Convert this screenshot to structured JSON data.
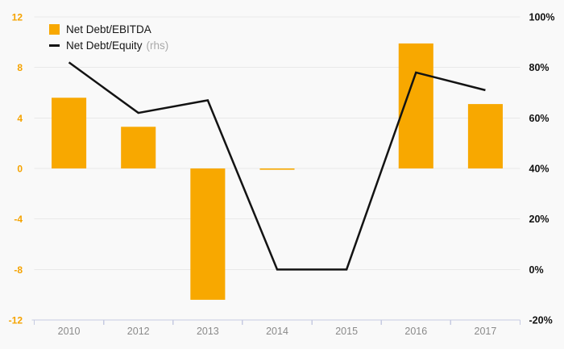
{
  "legend": {
    "items": [
      {
        "label": "Net Debt/EBITDA",
        "swatch": "square",
        "color": "#F8A800"
      },
      {
        "label": "Net Debt/Equity",
        "suffix": "(rhs)",
        "swatch": "line",
        "color": "#131313"
      }
    ]
  },
  "chart_data": {
    "type": "combo-bar-line",
    "title": "",
    "categories": [
      "2010",
      "2012",
      "2013",
      "2014",
      "2015",
      "2016",
      "2017"
    ],
    "series": [
      {
        "name": "Net Debt/EBITDA",
        "type": "bar",
        "axis": "left",
        "color": "#F8A800",
        "values": [
          5.6,
          3.3,
          -10.4,
          -0.1,
          null,
          9.9,
          5.1
        ]
      },
      {
        "name": "Net Debt/Equity (rhs)",
        "type": "line",
        "axis": "right",
        "color": "#131313",
        "values": [
          82,
          62,
          67,
          0,
          0,
          78,
          71
        ]
      }
    ],
    "left_axis": {
      "min": -12,
      "max": 12,
      "ticks": [
        12,
        8,
        4,
        0,
        -4,
        -8,
        -12
      ],
      "label_color": "#F5A300"
    },
    "right_axis": {
      "min": -20,
      "max": 100,
      "ticks": [
        100,
        80,
        60,
        40,
        20,
        0,
        -20
      ],
      "labels": [
        "100%",
        "80%",
        "60%",
        "40%",
        "20%",
        "0%",
        "-20%"
      ],
      "label_color": "#111111"
    },
    "x_axis": {
      "label_color": "#8a8a8a",
      "line_color": "#c6cbe2"
    },
    "grid": {
      "on": true,
      "color": "#e9e9e9"
    },
    "background": "#f9f9f9",
    "legend_position": "top-left"
  }
}
